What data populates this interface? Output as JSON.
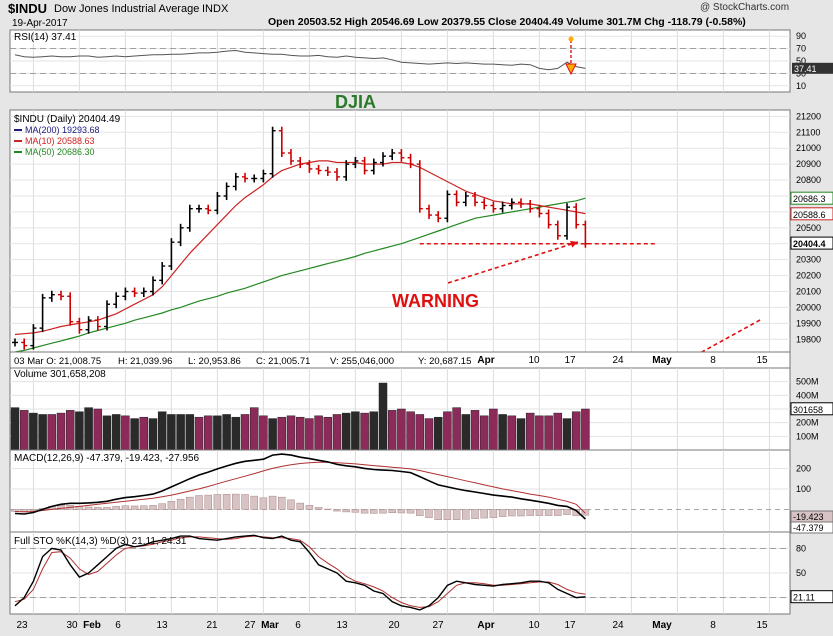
{
  "header": {
    "symbol": "$INDU",
    "name": "Dow Jones Industrial Average",
    "exchange": "INDX",
    "date": "19-Apr-2017",
    "ohlc": "Open 20503.52 High 20546.69 Low 20379.55 Close 20404.49 Volume 301.7M Chg -118.79 (-0.58%)",
    "watermark": "@ StockCharts.com"
  },
  "chart_data": [
    {
      "type": "line",
      "title": "RSI(14) 37.41",
      "ylim": [
        0,
        100
      ],
      "y_ticks": [
        10,
        30,
        50,
        70,
        90
      ],
      "last_value": "37.41",
      "values": [
        60,
        57,
        56,
        57,
        58,
        57,
        57,
        58,
        58,
        56,
        57,
        58,
        57,
        58,
        59,
        60,
        60,
        61,
        61,
        62,
        63,
        63,
        64,
        66,
        67,
        64,
        63,
        62,
        61,
        61,
        59,
        58,
        58,
        59,
        57,
        56,
        58,
        56,
        55,
        54,
        55,
        52,
        48,
        47,
        46,
        45,
        46,
        47,
        46,
        47,
        46,
        45,
        45,
        44,
        43,
        45,
        44,
        38,
        36,
        38,
        48,
        41,
        38
      ]
    },
    {
      "type": "candlestick",
      "title": "$INDU (Daily) 20404.49",
      "annotation_title": "DJIA",
      "annotation_warning": "WARNING",
      "legend": [
        "MA(200) 19293.68",
        "MA(10) 20588.63",
        "MA(50) 20686.30"
      ],
      "ylim": [
        19720,
        21240
      ],
      "y_ticks": [
        19800,
        19900,
        20000,
        20100,
        20200,
        20300,
        20400,
        20500,
        20600,
        20700,
        20800,
        20900,
        21000,
        21100,
        21200
      ],
      "last_price": "20404.4",
      "ma10_label": "20588.6",
      "ma50_label": "20686.3",
      "support_level": 20400,
      "close": [
        19780,
        19760,
        19870,
        20060,
        20080,
        20070,
        19910,
        19860,
        19920,
        19880,
        20020,
        20070,
        20100,
        20090,
        20100,
        20170,
        20260,
        20410,
        20500,
        20620,
        20620,
        20610,
        20700,
        20760,
        20820,
        20810,
        20810,
        20840,
        21110,
        20970,
        20920,
        20900,
        20870,
        20860,
        20850,
        20820,
        20900,
        20920,
        20860,
        20910,
        20950,
        20970,
        20940,
        20900,
        20620,
        20580,
        20560,
        20710,
        20660,
        20700,
        20660,
        20640,
        20620,
        20640,
        20660,
        20650,
        20620,
        20590,
        20520,
        20450,
        20630,
        20520,
        20400
      ],
      "ma10": [
        19830,
        19835,
        19840,
        19850,
        19865,
        19880,
        19890,
        19900,
        19910,
        19920,
        19940,
        19960,
        19990,
        20020,
        20050,
        20080,
        20130,
        20200,
        20270,
        20340,
        20400,
        20460,
        20520,
        20580,
        20640,
        20690,
        20730,
        20770,
        20820,
        20860,
        20880,
        20900,
        20910,
        20920,
        20920,
        20910,
        20910,
        20910,
        20900,
        20900,
        20900,
        20910,
        20910,
        20900,
        20880,
        20850,
        20820,
        20790,
        20760,
        20730,
        20710,
        20690,
        20670,
        20660,
        20650,
        20650,
        20650,
        20640,
        20630,
        20620,
        20610,
        20600,
        20589
      ],
      "ma50": [
        19720,
        19730,
        19745,
        19760,
        19775,
        19790,
        19805,
        19820,
        19840,
        19855,
        19870,
        19885,
        19900,
        19920,
        19935,
        19950,
        19965,
        19985,
        20000,
        20020,
        20040,
        20055,
        20070,
        20090,
        20105,
        20120,
        20140,
        20160,
        20180,
        20200,
        20215,
        20230,
        20245,
        20260,
        20275,
        20290,
        20305,
        20320,
        20340,
        20355,
        20370,
        20385,
        20400,
        20420,
        20440,
        20460,
        20480,
        20500,
        20520,
        20540,
        20560,
        20570,
        20580,
        20590,
        20600,
        20610,
        20620,
        20630,
        20640,
        20650,
        20660,
        20670,
        20686
      ]
    },
    {
      "type": "bar",
      "title": "Volume 301,658,208",
      "ylim": [
        0,
        600
      ],
      "y_ticks_labels": [
        "100M",
        "200M",
        "300M",
        "400M",
        "500M"
      ],
      "y_ticks": [
        100,
        200,
        300,
        400,
        500
      ],
      "last_value": "301658",
      "values": [
        310,
        290,
        270,
        260,
        260,
        270,
        290,
        280,
        310,
        300,
        250,
        260,
        250,
        230,
        240,
        230,
        280,
        260,
        260,
        260,
        240,
        250,
        250,
        260,
        240,
        260,
        310,
        250,
        230,
        240,
        250,
        240,
        230,
        250,
        240,
        260,
        270,
        280,
        270,
        280,
        490,
        290,
        300,
        280,
        260,
        230,
        240,
        280,
        310,
        260,
        290,
        250,
        300,
        260,
        250,
        230,
        270,
        250,
        250,
        270,
        230,
        280,
        300
      ],
      "up": [
        true,
        false,
        true,
        true,
        false,
        false,
        false,
        true,
        true,
        false,
        true,
        true,
        false,
        true,
        false,
        true,
        true,
        true,
        true,
        true,
        false,
        false,
        true,
        true,
        true,
        false,
        false,
        false,
        true,
        false,
        false,
        false,
        false,
        false,
        false,
        false,
        true,
        true,
        false,
        true,
        true,
        false,
        false,
        false,
        false,
        false,
        true,
        false,
        false,
        true,
        false,
        false,
        false,
        true,
        false,
        true,
        false,
        false,
        false,
        false,
        true,
        false,
        false
      ]
    },
    {
      "type": "line",
      "title": "MACD(12,26,9) -47.379, -19.423, -27.956",
      "ylim": [
        -110,
        290
      ],
      "y_ticks": [
        100,
        200
      ],
      "labels_right": [
        "-19.423",
        "-47.379"
      ],
      "macd": [
        -20,
        -22,
        -15,
        0,
        15,
        25,
        30,
        30,
        32,
        35,
        40,
        50,
        58,
        62,
        68,
        75,
        90,
        110,
        130,
        150,
        168,
        182,
        198,
        212,
        225,
        235,
        240,
        245,
        265,
        270,
        265,
        255,
        248,
        240,
        232,
        220,
        213,
        208,
        200,
        195,
        192,
        190,
        185,
        180,
        160,
        140,
        120,
        110,
        100,
        92,
        85,
        78,
        70,
        65,
        60,
        52,
        45,
        38,
        30,
        20,
        15,
        -5,
        -47
      ],
      "signal": [
        -10,
        -12,
        -10,
        -5,
        0,
        5,
        10,
        15,
        20,
        25,
        30,
        35,
        40,
        45,
        50,
        55,
        62,
        70,
        80,
        90,
        100,
        112,
        125,
        138,
        150,
        162,
        175,
        188,
        200,
        210,
        218,
        224,
        228,
        230,
        230,
        228,
        225,
        222,
        218,
        214,
        210,
        206,
        202,
        198,
        190,
        180,
        170,
        160,
        150,
        140,
        130,
        120,
        110,
        100,
        92,
        84,
        75,
        68,
        60,
        50,
        40,
        25,
        -19
      ],
      "hist": [
        -10,
        -10,
        -5,
        5,
        15,
        20,
        20,
        15,
        12,
        10,
        10,
        15,
        18,
        17,
        18,
        20,
        28,
        40,
        50,
        60,
        68,
        70,
        73,
        74,
        75,
        73,
        65,
        57,
        65,
        60,
        47,
        31,
        20,
        10,
        2,
        -8,
        -12,
        -14,
        -18,
        -19,
        -18,
        -16,
        -17,
        -18,
        -30,
        -40,
        -50,
        -50,
        -50,
        -48,
        -45,
        -42,
        -40,
        -35,
        -32,
        -32,
        -30,
        -30,
        -30,
        -30,
        -25,
        -30,
        -28
      ]
    },
    {
      "type": "line",
      "title": "Full STO %K(14,3) %D(3) 21.11, 24.31",
      "ylim": [
        0,
        100
      ],
      "y_ticks": [
        20,
        50,
        80
      ],
      "last_value": "21.11",
      "k": [
        10,
        20,
        40,
        70,
        80,
        78,
        60,
        45,
        50,
        60,
        70,
        80,
        85,
        82,
        84,
        88,
        90,
        92,
        95,
        95,
        92,
        91,
        90,
        92,
        94,
        95,
        96,
        93,
        92,
        95,
        90,
        88,
        75,
        60,
        55,
        50,
        40,
        38,
        35,
        28,
        25,
        15,
        10,
        8,
        5,
        10,
        20,
        35,
        40,
        38,
        36,
        35,
        34,
        36,
        37,
        38,
        40,
        40,
        38,
        30,
        25,
        20,
        21
      ],
      "d": [
        15,
        18,
        30,
        55,
        75,
        76,
        68,
        55,
        48,
        52,
        62,
        72,
        80,
        82,
        83,
        85,
        88,
        90,
        93,
        94,
        94,
        93,
        92,
        91,
        92,
        94,
        95,
        94,
        93,
        93,
        92,
        90,
        82,
        70,
        62,
        55,
        46,
        40,
        37,
        33,
        28,
        20,
        14,
        10,
        8,
        9,
        15,
        25,
        35,
        38,
        38,
        37,
        35,
        35,
        36,
        37,
        38,
        39,
        39,
        36,
        30,
        26,
        24
      ]
    }
  ],
  "x_axis": {
    "top_labels": [
      "Apr",
      "10",
      "17",
      "24",
      "May",
      "8",
      "15"
    ],
    "bottom_labels": [
      "23",
      "30",
      "Feb",
      "6",
      "13",
      "21",
      "27",
      "Mar",
      "6",
      "13",
      "20",
      "27",
      "Apr",
      "10",
      "17",
      "24",
      "May",
      "8",
      "15"
    ],
    "info_row": [
      "03 Mar O: 21,008.75",
      "H: 21,039.96",
      "L: 20,953.86",
      "C: 21,005.71",
      "V: 255,046,000",
      "Y: 20,687.15"
    ]
  },
  "colors": {
    "up": "#000000",
    "down": "#cc0000",
    "ma200": "#1a1a80",
    "ma10": "#cc2222",
    "ma50": "#228822",
    "vol_up": "#2a2a2a",
    "vol_down": "#8c2a5a",
    "annotation_green": "#2a7a2a",
    "annotation_red": "#e01010"
  }
}
